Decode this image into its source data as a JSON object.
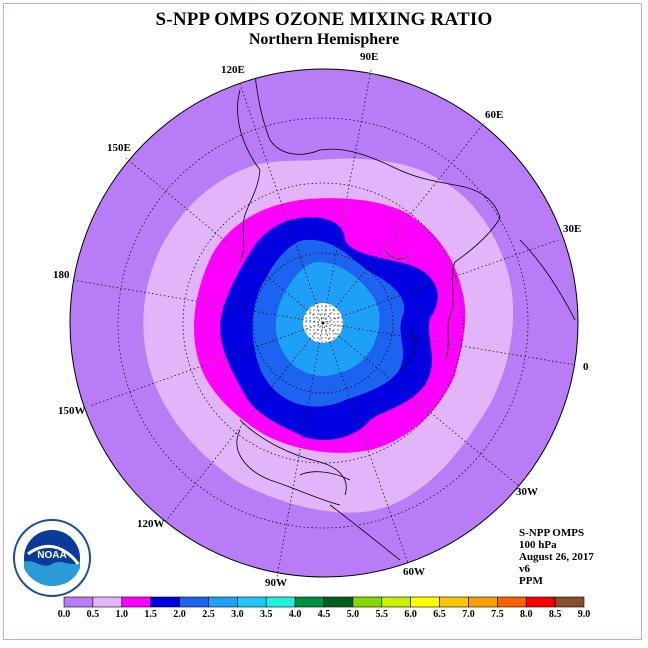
{
  "title": "S-NPP OMPS OZONE MIXING RATIO",
  "subtitle": "Northern Hemisphere",
  "longitude_labels": [
    "90E",
    "60E",
    "30E",
    "0",
    "30W",
    "60W",
    "90W",
    "120W",
    "150W",
    "180",
    "150E",
    "120E"
  ],
  "info": {
    "instrument": "S-NPP OMPS",
    "level": "100 hPa",
    "date": "August 26, 2017",
    "version": "v6",
    "units": "PPM"
  },
  "logo_text": "NOAA",
  "colorbar": {
    "ticks": [
      "0.0",
      "0.5",
      "1.0",
      "1.5",
      "2.0",
      "2.5",
      "3.0",
      "3.5",
      "4.0",
      "4.5",
      "5.0",
      "5.5",
      "6.0",
      "6.5",
      "7.0",
      "7.5",
      "8.0",
      "8.5",
      "9.0"
    ],
    "colors": [
      "#b87cf7",
      "#e2b4f9",
      "#ff00ff",
      "#0000e0",
      "#1c64f0",
      "#1ea0f8",
      "#1ec8f8",
      "#20f0e0",
      "#009040",
      "#006020",
      "#88d800",
      "#c8f000",
      "#ffff00",
      "#f8c800",
      "#f8a000",
      "#f86000",
      "#f80000",
      "#885028"
    ]
  },
  "map_colors": {
    "range_0_0_5": "#b87cf7",
    "range_0_5_1_0": "#e2b4f9",
    "range_1_0_1_5": "#ff00ff",
    "range_1_5_2_0": "#0000e0",
    "range_2_0_2_5": "#1c64f0",
    "range_2_5_3_0": "#1ea0f8",
    "no_data": "#ffffff"
  }
}
